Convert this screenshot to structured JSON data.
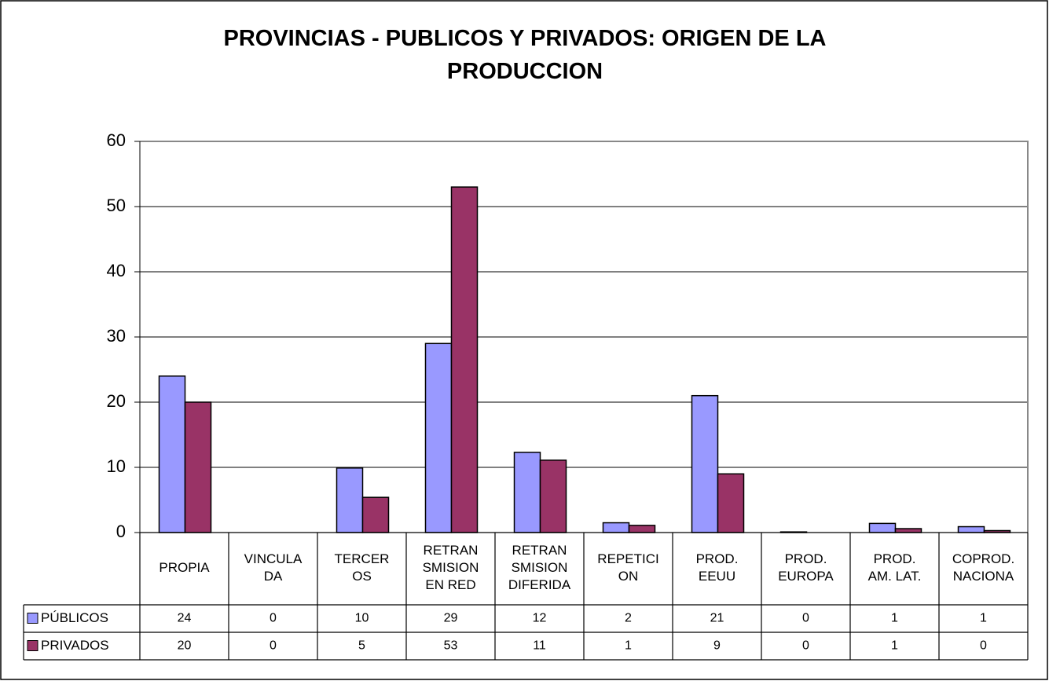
{
  "chart_data": {
    "type": "bar",
    "title": "PROVINCIAS - PUBLICOS Y PRIVADOS: ORIGEN DE LA PRODUCCION",
    "categories": [
      "PROPIA",
      "VINCULADA",
      "TERCEROS",
      "RETRANSMISION EN RED",
      "RETRANSMISION DIFERIDA",
      "REPETICION",
      "PROD. EEUU",
      "PROD. EUROPA",
      "PROD. AM. LAT.",
      "COPROD. NACIONA"
    ],
    "series": [
      {
        "name": "PÚBLICOS",
        "color": "#9999ff",
        "values": [
          24,
          0,
          9.9,
          29,
          12.3,
          1.5,
          21,
          0.1,
          1.4,
          0.9
        ],
        "value_labels": [
          "24",
          "0",
          "10",
          "29",
          "12",
          "2",
          "21",
          "0",
          "1",
          "1"
        ]
      },
      {
        "name": "PRIVADOS",
        "color": "#993366",
        "values": [
          20,
          0,
          5.4,
          53,
          11.1,
          1.1,
          9,
          0,
          0.6,
          0.3
        ],
        "value_labels": [
          "20",
          "0",
          "5",
          "53",
          "11",
          "1",
          "9",
          "0",
          "1",
          "0"
        ]
      }
    ],
    "ylim": [
      0,
      60
    ],
    "yticks": [
      0,
      10,
      20,
      30,
      40,
      50,
      60
    ],
    "grid": true,
    "legend": "data-table"
  }
}
